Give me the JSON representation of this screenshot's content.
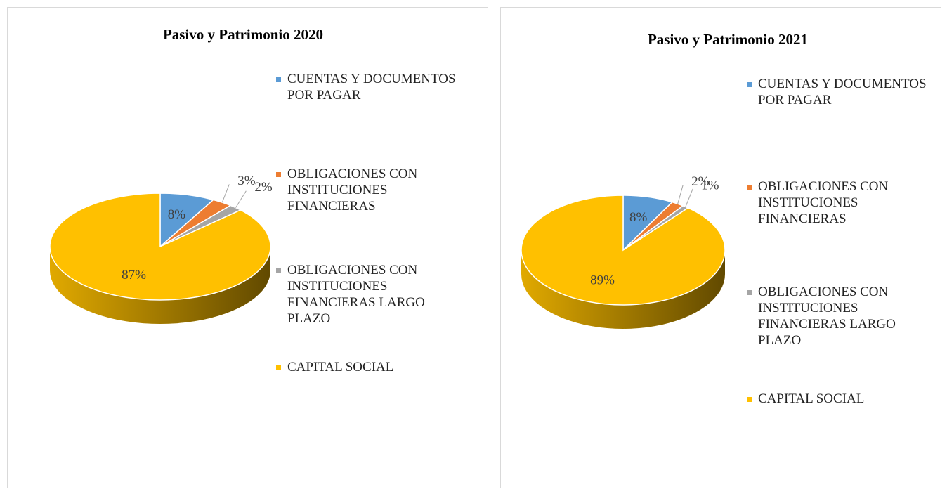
{
  "chart_data": [
    {
      "type": "pie",
      "title": "Pasivo y Patrimonio 2020",
      "categories": [
        "CUENTAS Y DOCUMENTOS POR PAGAR",
        "OBLIGACIONES CON INSTITUCIONES FINANCIERAS",
        "OBLIGACIONES CON INSTITUCIONES FINANCIERAS LARGO PLAZO",
        "CAPITAL SOCIAL"
      ],
      "values": [
        8,
        3,
        2,
        87
      ],
      "value_labels": [
        "8%",
        "3%",
        "2%",
        "87%"
      ],
      "colors": [
        "#5b9bd5",
        "#ed7d31",
        "#a5a5a5",
        "#ffc000"
      ],
      "legend": "right"
    },
    {
      "type": "pie",
      "title": "Pasivo y Patrimonio 2021",
      "categories": [
        "CUENTAS Y DOCUMENTOS POR PAGAR",
        "OBLIGACIONES CON INSTITUCIONES FINANCIERAS",
        "OBLIGACIONES CON INSTITUCIONES FINANCIERAS LARGO PLAZO",
        "CAPITAL SOCIAL"
      ],
      "values": [
        8,
        2,
        1,
        89
      ],
      "value_labels": [
        "8%",
        "2%",
        "1%",
        "89%"
      ],
      "colors": [
        "#5b9bd5",
        "#ed7d31",
        "#a5a5a5",
        "#ffc000"
      ],
      "legend": "right"
    }
  ]
}
